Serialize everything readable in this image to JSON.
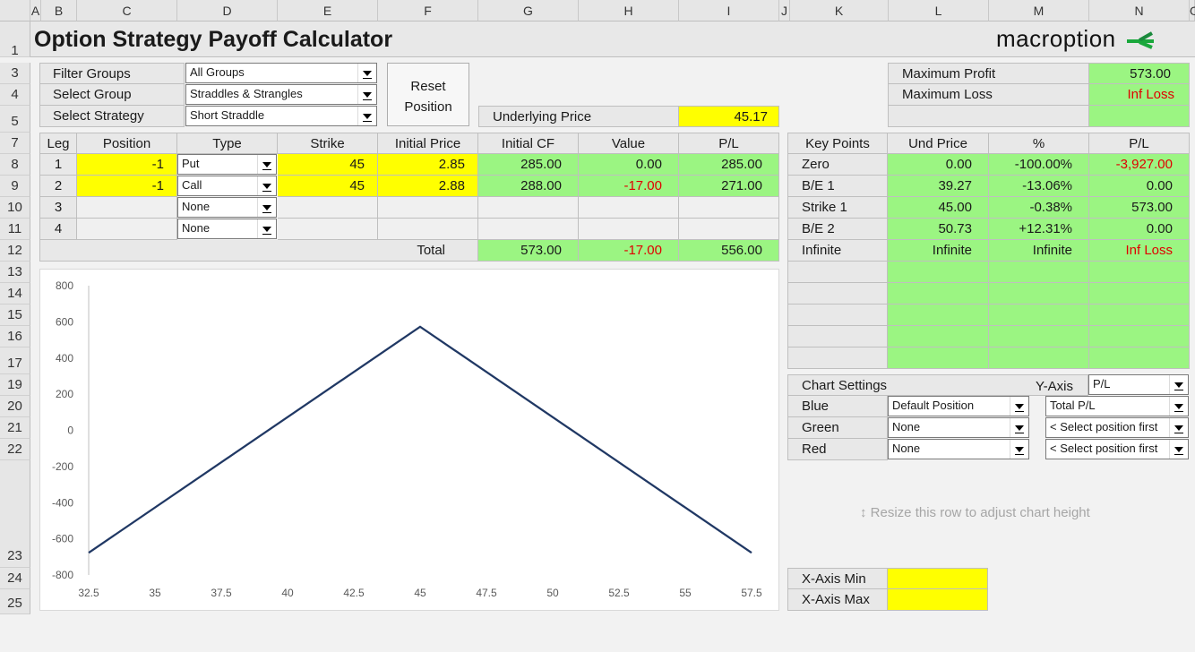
{
  "sheet": {
    "columns": [
      "A",
      "B",
      "C",
      "D",
      "E",
      "F",
      "G",
      "H",
      "I",
      "J",
      "K",
      "L",
      "M",
      "N",
      "O"
    ],
    "rows": [
      "1",
      "3",
      "4",
      "5",
      "7",
      "8",
      "9",
      "10",
      "11",
      "12",
      "13",
      "14",
      "15",
      "16",
      "17",
      "19",
      "20",
      "21",
      "22",
      "23",
      "24",
      "25"
    ]
  },
  "title": "Option Strategy Payoff Calculator",
  "logo": {
    "text": "macroption",
    "accent_color": "#1aa83c"
  },
  "filters": {
    "filter_groups_label": "Filter Groups",
    "filter_groups_value": "All Groups",
    "select_group_label": "Select Group",
    "select_group_value": "Straddles & Strangles",
    "select_strategy_label": "Select Strategy",
    "select_strategy_value": "Short Straddle"
  },
  "reset_button": {
    "line1": "Reset",
    "line2": "Position"
  },
  "underlying": {
    "label": "Underlying Price",
    "value": "45.17"
  },
  "summary": {
    "max_profit_label": "Maximum Profit",
    "max_profit_value": "573.00",
    "max_loss_label": "Maximum Loss",
    "max_loss_value": "Inf Loss"
  },
  "legs": {
    "headers": {
      "leg": "Leg",
      "position": "Position",
      "type": "Type",
      "strike": "Strike",
      "initial_price": "Initial Price",
      "initial_cf": "Initial CF",
      "value": "Value",
      "pl": "P/L"
    },
    "rows": [
      {
        "leg": "1",
        "position": "-1",
        "type": "Put",
        "strike": "45",
        "initial_price": "2.85",
        "initial_cf": "285.00",
        "value": "0.00",
        "pl": "285.00"
      },
      {
        "leg": "2",
        "position": "-1",
        "type": "Call",
        "strike": "45",
        "initial_price": "2.88",
        "initial_cf": "288.00",
        "value": "-17.00",
        "pl": "271.00"
      },
      {
        "leg": "3",
        "type": "None"
      },
      {
        "leg": "4",
        "type": "None"
      }
    ],
    "total": {
      "label": "Total",
      "initial_cf": "573.00",
      "value": "-17.00",
      "pl": "556.00"
    }
  },
  "key_points": {
    "headers": {
      "name": "Key Points",
      "price": "Und Price",
      "pct": "%",
      "pl": "P/L"
    },
    "rows": [
      {
        "name": "Zero",
        "price": "0.00",
        "pct": "-100.00%",
        "pl": "-3,927.00"
      },
      {
        "name": "B/E 1",
        "price": "39.27",
        "pct": "-13.06%",
        "pl": "0.00"
      },
      {
        "name": "Strike 1",
        "price": "45.00",
        "pct": "-0.38%",
        "pl": "573.00"
      },
      {
        "name": "B/E 2",
        "price": "50.73",
        "pct": "+12.31%",
        "pl": "0.00"
      },
      {
        "name": "Infinite",
        "price": "Infinite",
        "pct": "Infinite",
        "pl": "Inf Loss"
      }
    ]
  },
  "chart_settings": {
    "title": "Chart Settings",
    "yaxis_label": "Y-Axis",
    "yaxis_value": "P/L",
    "blue_label": "Blue",
    "blue_pos": "Default Position",
    "blue_series": "Total P/L",
    "green_label": "Green",
    "green_pos": "None",
    "green_series": "< Select position first",
    "red_label": "Red",
    "red_pos": "None",
    "red_series": "< Select position first"
  },
  "resize_hint": "Resize this row to adjust chart height",
  "xaxis": {
    "min_label": "X-Axis Min",
    "max_label": "X-Axis Max"
  },
  "chart_data": {
    "type": "line",
    "title": "",
    "xlabel": "",
    "ylabel": "",
    "xlim": [
      32.5,
      57.5
    ],
    "ylim": [
      -800,
      800
    ],
    "x_ticks": [
      "32.5",
      "35",
      "37.5",
      "40",
      "42.5",
      "45",
      "47.5",
      "50",
      "52.5",
      "55",
      "57.5"
    ],
    "y_ticks": [
      "800",
      "600",
      "400",
      "200",
      "0",
      "-200",
      "-400",
      "-600",
      "-800"
    ],
    "grid": false,
    "series": [
      {
        "color": "#203864",
        "x": [
          32.5,
          45,
          57.5
        ],
        "y": [
          -677,
          573,
          -677
        ]
      }
    ]
  }
}
